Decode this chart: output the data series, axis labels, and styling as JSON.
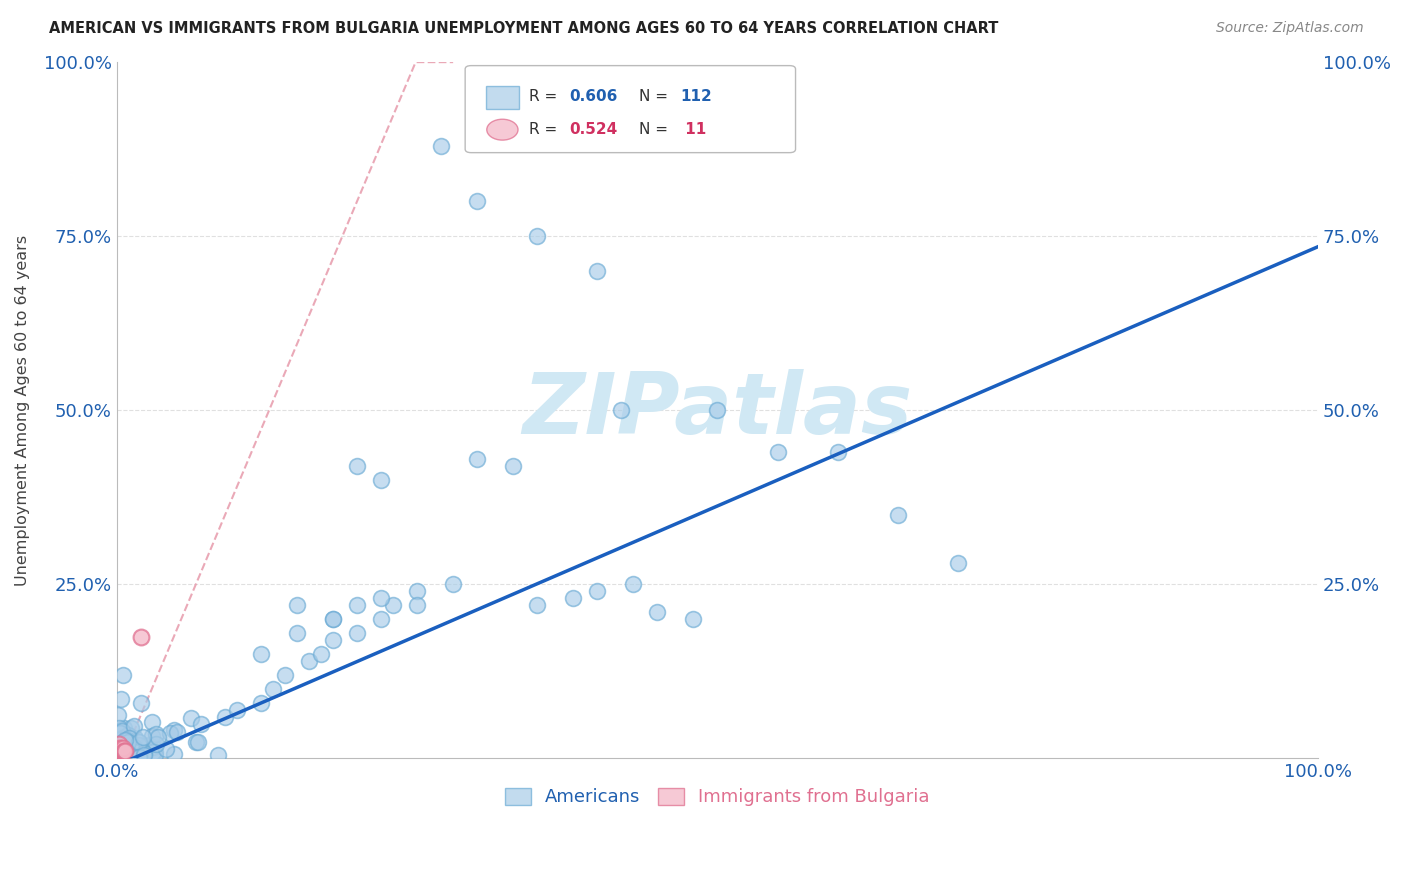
{
  "title": "AMERICAN VS IMMIGRANTS FROM BULGARIA UNEMPLOYMENT AMONG AGES 60 TO 64 YEARS CORRELATION CHART",
  "source": "Source: ZipAtlas.com",
  "ylabel": "Unemployment Among Ages 60 to 64 years",
  "r_americans": 0.606,
  "n_americans": 112,
  "r_bulgaria": 0.524,
  "n_bulgaria": 11,
  "americans_color": "#a8cce8",
  "americans_edge": "#6aaad4",
  "bulgaria_color": "#f4b8c8",
  "bulgaria_edge": "#e07090",
  "trendline_color": "#1a5fbf",
  "dashed_line_color": "#e8a0b0",
  "watermark_color": "#d0e8f4",
  "background_color": "#ffffff",
  "axis_label_color": "#2060b0",
  "title_color": "#222222",
  "source_color": "#888888",
  "grid_color": "#e0e0e0",
  "legend_r_color_am": "#2060b0",
  "legend_r_color_bg": "#d03060",
  "xlim": [
    0,
    1.0
  ],
  "ylim": [
    0,
    1.0
  ],
  "yticks": [
    0.0,
    0.25,
    0.5,
    0.75,
    1.0
  ],
  "seed": 99
}
